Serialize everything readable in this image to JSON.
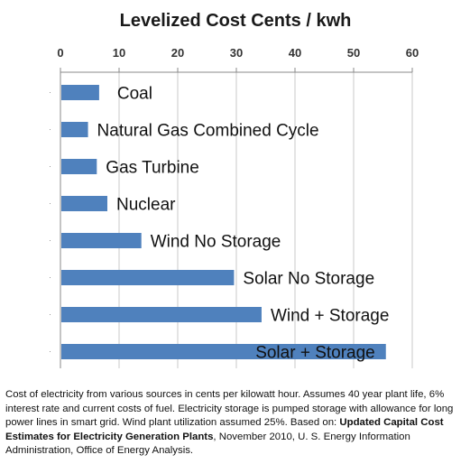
{
  "chart_data": {
    "type": "bar",
    "orientation": "horizontal",
    "title": "Levelized Cost Cents / kwh",
    "categories": [
      "Coal",
      "Natural Gas Combined Cycle",
      "Gas Turbine",
      "Nuclear",
      "Wind No Storage",
      "Solar No Storage",
      "Wind + Storage",
      "Solar + Storage"
    ],
    "values": [
      6.6,
      4.7,
      6.2,
      8.0,
      13.8,
      29.6,
      34.3,
      55.5
    ],
    "xlim": [
      0,
      60
    ],
    "x_ticks": [
      "0",
      "10",
      "20",
      "30",
      "40",
      "50",
      "60"
    ],
    "x_axis_position": "top",
    "xlabel": "",
    "ylabel": "",
    "grid": true,
    "bar_color": "#4f81bd",
    "label_placement": "right of bar (inside for last bar)"
  },
  "caption": {
    "text_before": "Cost of electricity from various sources in cents per kilowatt hour. Assumes 40 year plant life, 6% interest rate and current costs of fuel. Electricity storage is pumped storage with allowance for long power lines in smart grid. Wind plant utilization assumed 25%. Based on: ",
    "bold_text": "Updated Capital Cost Estimates for Electricity Generation Plants",
    "text_after": ", November 2010, U. S. Energy Information Administration, Office of Energy Analysis."
  }
}
